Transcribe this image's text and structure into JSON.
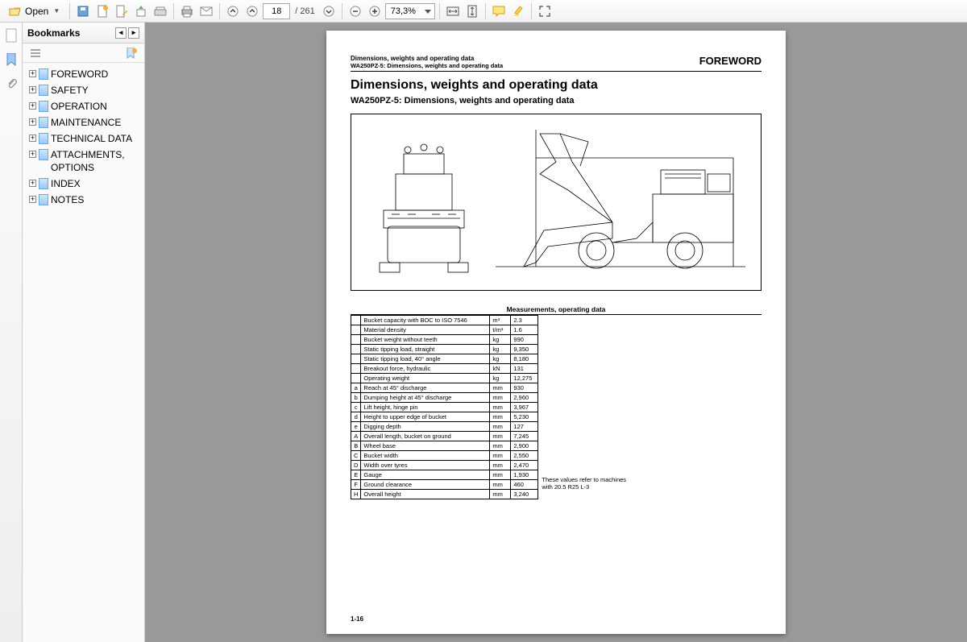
{
  "toolbar": {
    "open": "Open",
    "page_current": "18",
    "page_total": "261",
    "zoom": "73,3%"
  },
  "sidebar": {
    "title": "Bookmarks",
    "items": [
      {
        "label": "FOREWORD"
      },
      {
        "label": "SAFETY"
      },
      {
        "label": "OPERATION"
      },
      {
        "label": "MAINTENANCE"
      },
      {
        "label": "TECHNICAL DATA"
      },
      {
        "label": "ATTACHMENTS, OPTIONS"
      },
      {
        "label": "INDEX"
      },
      {
        "label": "NOTES"
      }
    ]
  },
  "doc": {
    "section_header": "FOREWORD",
    "breadcrumb1": "Dimensions, weights and operating data",
    "breadcrumb2": "WA250PZ-5: Dimensions, weights and operating data",
    "title": "Dimensions, weights and operating data",
    "subtitle": "WA250PZ-5: Dimensions, weights and operating data",
    "table_title": "Measurements, operating data",
    "page_number": "1-16",
    "note": "These values refer to machines with 20.5 R25 L-3",
    "rows": [
      {
        "k": "",
        "desc": "Bucket capacity with BOC to ISO 7546",
        "u": "m³",
        "v": "2.3"
      },
      {
        "k": "",
        "desc": "Material density",
        "u": "t/m³",
        "v": "1.6"
      },
      {
        "k": "",
        "desc": "Bucket weight without teeth",
        "u": "kg",
        "v": "990"
      },
      {
        "k": "",
        "desc": "Static tipping load, straight",
        "u": "kg",
        "v": "9,350"
      },
      {
        "k": "",
        "desc": "Static tipping load, 40° angle",
        "u": "kg",
        "v": "8,180"
      },
      {
        "k": "",
        "desc": "Breakout force, hydraulic",
        "u": "kN",
        "v": "131"
      },
      {
        "k": "",
        "desc": "Operating weight",
        "u": "kg",
        "v": "12,275"
      },
      {
        "k": "a",
        "desc": "Reach at 45° discharge",
        "u": "mm",
        "v": "930"
      },
      {
        "k": "b",
        "desc": "Dumping height at 45° discharge",
        "u": "mm",
        "v": "2,960"
      },
      {
        "k": "c",
        "desc": "Lift height, hinge pin",
        "u": "mm",
        "v": "3,967"
      },
      {
        "k": "d",
        "desc": "Height to upper edge of bucket",
        "u": "mm",
        "v": "5,230"
      },
      {
        "k": "e",
        "desc": "Digging depth",
        "u": "mm",
        "v": "127"
      },
      {
        "k": "A",
        "desc": "Overall length, bucket on ground",
        "u": "mm",
        "v": "7,245"
      },
      {
        "k": "B",
        "desc": "Wheel base",
        "u": "mm",
        "v": "2,900"
      },
      {
        "k": "C",
        "desc": "Bucket width",
        "u": "mm",
        "v": "2,550"
      },
      {
        "k": "D",
        "desc": "Width over tyres",
        "u": "mm",
        "v": "2,470"
      },
      {
        "k": "E",
        "desc": "Gauge",
        "u": "mm",
        "v": "1,930"
      },
      {
        "k": "F",
        "desc": "Ground clearance",
        "u": "mm",
        "v": "460"
      },
      {
        "k": "H",
        "desc": "Overall height",
        "u": "mm",
        "v": "3,240"
      }
    ]
  }
}
